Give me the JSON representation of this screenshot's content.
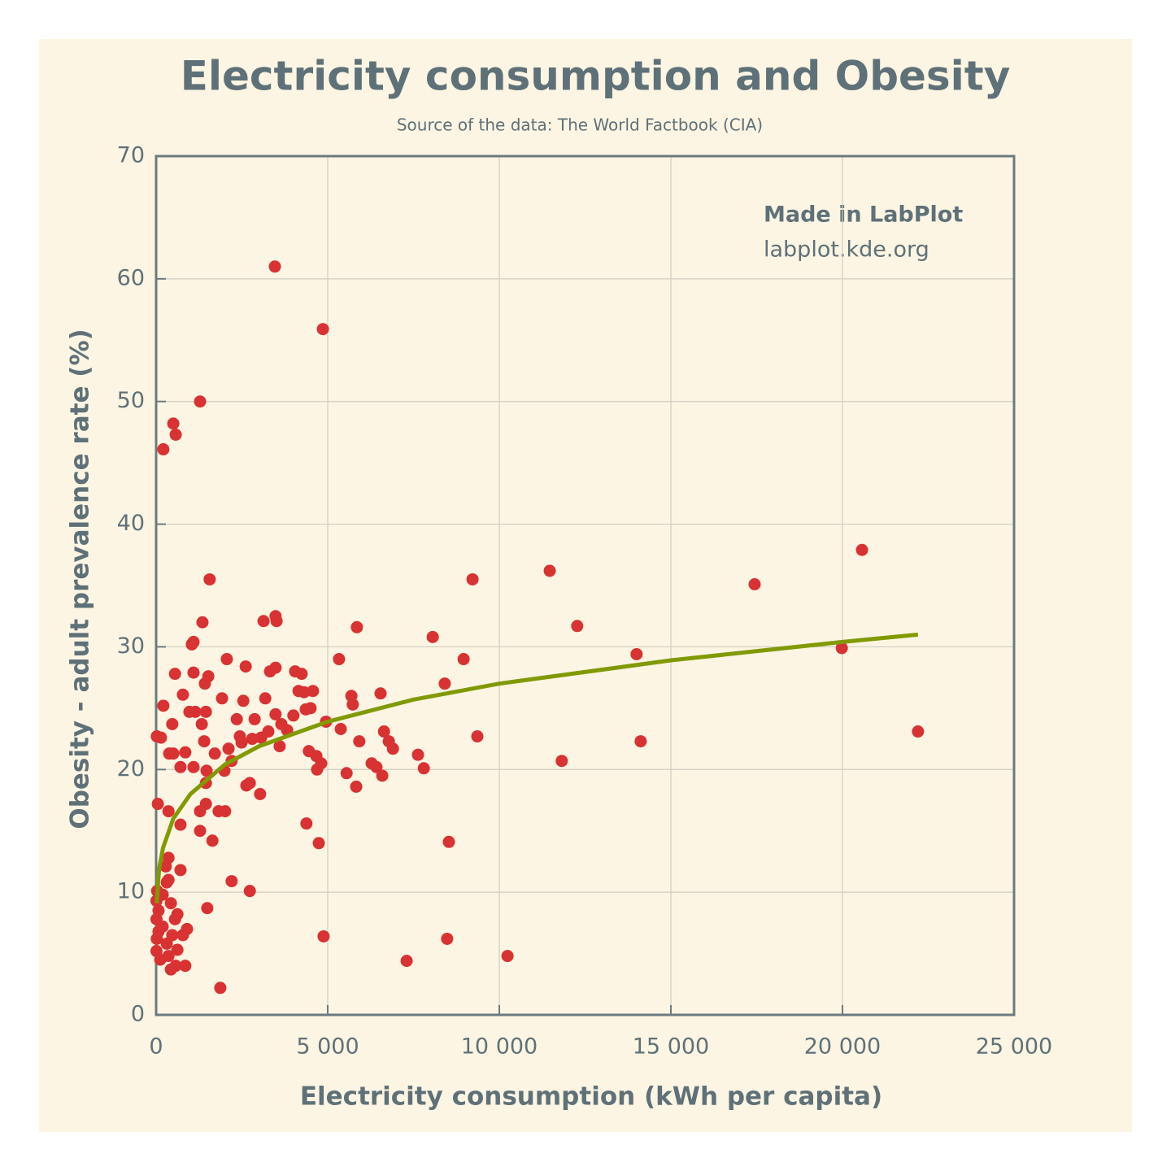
{
  "chart_data": {
    "type": "scatter",
    "title": "Electricity consumption and Obesity",
    "subtitle": "Source of the data: The World Factbook (CIA)",
    "x_label": "Electricity consumption (kWh per capita)",
    "y_label": "Obesity - adult prevalence rate (%)",
    "annotations": [
      "Made in LabPlot",
      "labplot.kde.org"
    ],
    "xlim": [
      0,
      25000
    ],
    "ylim": [
      0,
      70
    ],
    "xticks": [
      0,
      {
        "value": 5000,
        "label": "5 000"
      },
      {
        "value": 10000,
        "label": "10 000"
      },
      {
        "value": 15000,
        "label": "15 000"
      },
      {
        "value": 20000,
        "label": "20 000"
      },
      {
        "value": 25000,
        "label": "25 000"
      }
    ],
    "yticks": [
      0,
      10,
      20,
      30,
      40,
      50,
      60,
      70
    ],
    "grid": true,
    "points": {
      "color": "#d93232",
      "x": [
        3460,
        4860,
        1280,
        500,
        570,
        210,
        20570,
        11470,
        17440,
        9220,
        1560,
        3480,
        3510,
        1350,
        3130,
        12270,
        5850,
        8060,
        1090,
        1040,
        14000,
        19980,
        8960,
        2060,
        5330,
        2610,
        3480,
        3320,
        550,
        1090,
        4050,
        4240,
        1520,
        1420,
        8410,
        780,
        4570,
        4150,
        4310,
        6540,
        5690,
        3180,
        1920,
        2540,
        5730,
        210,
        4360,
        4500,
        970,
        1140,
        1450,
        3480,
        4000,
        2870,
        2350,
        4950,
        470,
        3650,
        1330,
        5380,
        6640,
        22200,
        3270,
        3820,
        20,
        140,
        9360,
        2440,
        2800,
        3060,
        5920,
        1400,
        6780,
        14120,
        2490,
        3600,
        4450,
        2110,
        6900,
        850,
        380,
        1710,
        500,
        4670,
        7630,
        4810,
        2200,
        11820,
        6280,
        6420,
        710,
        1090,
        7800,
        4690,
        1990,
        1470,
        5550,
        6590,
        2730,
        1450,
        2630,
        5830,
        3030,
        50,
        1450,
        1820,
        2010,
        1280,
        360,
        710,
        4380,
        1280,
        1640,
        8530,
        4740,
        360,
        280,
        710,
        360,
        2200,
        2730,
        1490,
        620,
        900,
        4880,
        8480,
        10240,
        7300,
        850,
        570,
        430,
        1870,
        620,
        30,
        10,
        70,
        10,
        190,
        20,
        310,
        10,
        120,
        430,
        550,
        190,
        310,
        70,
        470,
        780,
        360
      ],
      "y": [
        61.0,
        55.9,
        50.0,
        48.2,
        47.3,
        46.1,
        37.9,
        36.2,
        35.1,
        35.5,
        35.5,
        32.5,
        32.1,
        32.0,
        32.1,
        31.7,
        31.6,
        30.8,
        30.4,
        30.2,
        29.4,
        29.9,
        29.0,
        29.0,
        29.0,
        28.4,
        28.3,
        28.0,
        27.8,
        27.9,
        28.0,
        27.8,
        27.6,
        27.0,
        27.0,
        26.1,
        26.4,
        26.4,
        26.3,
        26.2,
        26.0,
        25.8,
        25.8,
        25.6,
        25.3,
        25.2,
        24.9,
        25.0,
        24.7,
        24.7,
        24.7,
        24.5,
        24.4,
        24.1,
        24.1,
        23.9,
        23.7,
        23.7,
        23.7,
        23.3,
        23.1,
        23.1,
        23.1,
        23.2,
        22.7,
        22.6,
        22.7,
        22.7,
        22.5,
        22.6,
        22.3,
        22.3,
        22.3,
        22.3,
        22.2,
        21.9,
        21.5,
        21.7,
        21.7,
        21.4,
        21.3,
        21.3,
        21.3,
        21.1,
        21.2,
        20.5,
        20.7,
        20.7,
        20.5,
        20.2,
        20.2,
        20.2,
        20.1,
        20.0,
        19.9,
        19.9,
        19.7,
        19.5,
        18.9,
        18.9,
        18.7,
        18.6,
        18.0,
        17.2,
        17.2,
        16.6,
        16.6,
        16.6,
        16.6,
        15.5,
        15.6,
        15.0,
        14.2,
        14.1,
        14.0,
        12.8,
        12.1,
        11.8,
        11.0,
        10.9,
        10.1,
        8.7,
        8.2,
        7.0,
        6.4,
        6.2,
        4.8,
        4.4,
        4.0,
        4.0,
        3.7,
        2.2,
        5.3,
        10.1,
        9.3,
        8.5,
        7.8,
        7.2,
        6.2,
        5.8,
        5.2,
        4.5,
        9.1,
        7.8,
        9.8,
        10.8,
        6.8,
        6.5,
        6.5,
        4.8
      ]
    },
    "fit_curve": {
      "color": "#809a00",
      "x": [
        20,
        70,
        100,
        200,
        500,
        1000,
        2000,
        3000,
        5000,
        7500,
        10000,
        15000,
        20000,
        22200
      ],
      "y": [
        9.1,
        11.3,
        12.1,
        13.6,
        16.0,
        18.0,
        20.4,
        21.9,
        23.9,
        25.7,
        27.0,
        28.9,
        30.4,
        31.0
      ]
    }
  }
}
